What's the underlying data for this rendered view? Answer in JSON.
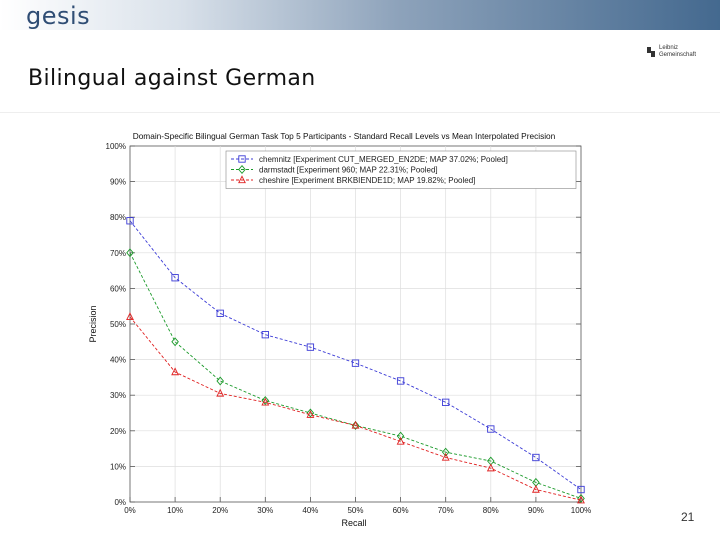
{
  "header": {
    "logo_text": "gesis",
    "partner_logo": [
      "Leibniz",
      "Gemeinschaft"
    ]
  },
  "slide": {
    "title": "Bilingual against German",
    "page_number": "21"
  },
  "chart_data": {
    "type": "line",
    "title": "Domain-Specific Bilingual German Task Top 5 Participants - Standard Recall Levels vs Mean Interpolated Precision",
    "xlabel": "Recall",
    "ylabel": "Precision",
    "x": [
      0,
      10,
      20,
      30,
      40,
      50,
      60,
      70,
      80,
      90,
      100
    ],
    "x_tick_labels": [
      "0%",
      "10%",
      "20%",
      "30%",
      "40%",
      "50%",
      "60%",
      "70%",
      "80%",
      "90%",
      "100%"
    ],
    "y_tick_labels": [
      "0%",
      "10%",
      "20%",
      "30%",
      "40%",
      "50%",
      "60%",
      "70%",
      "80%",
      "90%",
      "100%"
    ],
    "xlim": [
      0,
      100
    ],
    "ylim": [
      0,
      100
    ],
    "grid": true,
    "legend_position": "top-right",
    "series": [
      {
        "name": "chemnitz [Experiment CUT_MERGED_EN2DE; MAP 37.02%; Pooled]",
        "color": "#3b3bd6",
        "marker": "square",
        "values": [
          79,
          63,
          53,
          47,
          43.5,
          39,
          34,
          28,
          20.5,
          12.5,
          3.5
        ]
      },
      {
        "name": "darmstadt [Experiment 960; MAP 22.31%; Pooled]",
        "color": "#1b9a2a",
        "marker": "diamond",
        "values": [
          70,
          45,
          34,
          28.5,
          25,
          21.5,
          18.5,
          14,
          11.5,
          5.5,
          1
        ]
      },
      {
        "name": "cheshire [Experiment BRKBIENDE1D; MAP 19.82%; Pooled]",
        "color": "#e02020",
        "marker": "triangle",
        "values": [
          52,
          36.5,
          30.5,
          28,
          24.5,
          21.5,
          17,
          12.5,
          9.5,
          3.5,
          0.5
        ]
      }
    ]
  }
}
